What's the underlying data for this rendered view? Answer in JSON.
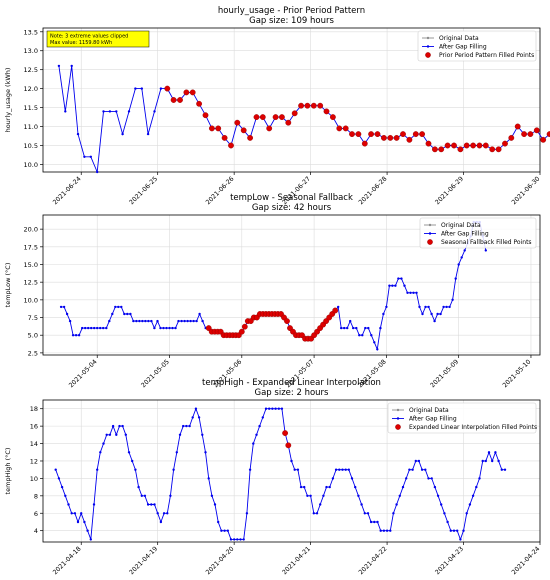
{
  "chart_data": [
    {
      "type": "line",
      "title": "hourly_usage - Prior Period Pattern",
      "subtitle": "Gap size: 109 hours",
      "ylabel": "hourly_usage (kWh)",
      "xlabel": "",
      "xlim": [
        "2021-06-23T12:00",
        "2021-06-30T00:00"
      ],
      "ylim": [
        9.8,
        13.6
      ],
      "yticks": [
        10.0,
        10.5,
        11.0,
        11.5,
        12.0,
        12.5,
        13.0,
        13.5
      ],
      "ytick_labels": [
        "10.0",
        "10.5",
        "11.0",
        "11.5",
        "12.0",
        "12.5",
        "13.0",
        "13.5"
      ],
      "xticks": [
        "2021-06-24",
        "2021-06-25",
        "2021-06-26",
        "2021-06-27",
        "2021-06-28",
        "2021-06-29",
        "2021-06-30"
      ],
      "grid": true,
      "legend_position": "top-right",
      "legend": [
        "Original Data",
        "After Gap Filling",
        "Prior Period Pattern Filled Points"
      ],
      "annotation": [
        "Note: 3 extreme values clipped",
        "Max value: 1159.80 kWh"
      ],
      "annotation_color": "#ffff00",
      "line_color": "#0000ee",
      "original_color": "#8c8c8c",
      "fill_color": "#dd0000",
      "fill_segments": [
        [
          17,
          84
        ],
        [
          113,
          122
        ]
      ],
      "x_start": "2021-06-23T17:00",
      "x_step_hours": 2,
      "values": [
        12.6,
        11.4,
        12.6,
        10.8,
        10.2,
        10.2,
        9.8,
        11.4,
        11.4,
        11.4,
        10.8,
        11.4,
        12.0,
        12.0,
        10.8,
        11.4,
        12.0,
        12.0,
        11.7,
        11.7,
        11.9,
        11.9,
        11.6,
        11.3,
        10.95,
        10.95,
        10.7,
        10.5,
        11.1,
        10.9,
        10.7,
        11.25,
        11.25,
        10.95,
        11.25,
        11.25,
        11.1,
        11.35,
        11.55,
        11.55,
        11.55,
        11.55,
        11.4,
        11.25,
        10.95,
        10.95,
        10.8,
        10.8,
        10.55,
        10.8,
        10.8,
        10.7,
        10.7,
        10.7,
        10.8,
        10.65,
        10.8,
        10.8,
        10.55,
        10.4,
        10.4,
        10.5,
        10.5,
        10.4,
        10.5,
        10.5,
        10.5,
        10.5,
        10.4,
        10.4,
        10.55,
        10.7,
        11.0,
        10.8,
        10.8,
        10.9,
        10.65,
        10.8,
        10.55,
        10.8,
        10.5,
        10.65,
        10.7,
        10.5,
        10.5,
        10.65,
        10.65,
        10.5,
        10.5,
        10.5,
        10.5,
        10.5,
        10.8,
        10.8,
        11.1,
        10.95,
        10.95,
        10.95,
        10.8,
        10.65,
        10.8,
        11.55,
        11.55,
        11.7,
        12.0,
        12.15,
        12.45,
        12.45,
        12.15,
        11.4,
        11.4,
        11.1,
        10.95,
        10.95,
        10.8,
        10.8,
        10.8,
        11.4,
        10.8,
        10.8,
        12.0,
        11.4,
        11.4,
        12.0,
        12.6,
        13.2,
        13.2,
        12.0,
        12.6,
        11.4,
        11.4
      ]
    },
    {
      "type": "line",
      "title": "tempLow - Seasonal Fallback",
      "subtitle": "Gap size: 42 hours",
      "ylabel": "tempLow (°C)",
      "xlabel": "",
      "xlim": [
        "2021-05-03T06:00",
        "2021-05-10T03:00"
      ],
      "ylim": [
        2.2,
        22.0
      ],
      "yticks": [
        2.5,
        5.0,
        7.5,
        10.0,
        12.5,
        15.0,
        17.5,
        20.0
      ],
      "ytick_labels": [
        "2.5",
        "5.0",
        "7.5",
        "10.0",
        "12.5",
        "15.0",
        "17.5",
        "20.0"
      ],
      "xticks": [
        "2021-05-04",
        "2021-05-05",
        "2021-05-06",
        "2021-05-07",
        "2021-05-08",
        "2021-05-09",
        "2021-05-10"
      ],
      "grid": true,
      "legend_position": "top-right",
      "legend": [
        "Original Data",
        "After Gap Filling",
        "Seasonal Fallback Filled Points"
      ],
      "line_color": "#0000ee",
      "original_color": "#8c8c8c",
      "fill_color": "#dd0000",
      "fill_segments": [
        [
          49,
          91
        ]
      ],
      "x_start": "2021-05-03T12:00",
      "x_step_hours": 1,
      "values": [
        9,
        9,
        8,
        7,
        5,
        5,
        5,
        6,
        6,
        6,
        6,
        6,
        6,
        6,
        6,
        6,
        7,
        8,
        9,
        9,
        9,
        8,
        8,
        8,
        7,
        7,
        7,
        7,
        7,
        7,
        7,
        6,
        7,
        6,
        6,
        6,
        6,
        6,
        6,
        7,
        7,
        7,
        7,
        7,
        7,
        7,
        8,
        7,
        6,
        6,
        5.5,
        5.5,
        5.5,
        5.5,
        5,
        5,
        5,
        5,
        5,
        5,
        5.5,
        6.2,
        7,
        7,
        7.5,
        7.5,
        8,
        8,
        8,
        8,
        8,
        8,
        8,
        8,
        7.5,
        7,
        6,
        5.5,
        5,
        5,
        5,
        4.5,
        4.5,
        4.5,
        5,
        5.5,
        6,
        6.5,
        7,
        7.5,
        8,
        8.5,
        9,
        6,
        6,
        6,
        7,
        6,
        6,
        5,
        5,
        6,
        6,
        5,
        4,
        3,
        6,
        8,
        9,
        12,
        12,
        12,
        13,
        13,
        12,
        11,
        11,
        11,
        11,
        9,
        8,
        9,
        9,
        8,
        7,
        8,
        8,
        9,
        9,
        9,
        10,
        13,
        15,
        16,
        17,
        18,
        19,
        21,
        21,
        21,
        19,
        17
      ]
    },
    {
      "type": "line",
      "title": "tempHigh - Expanded Linear Interpolation",
      "subtitle": "Gap size: 2 hours",
      "ylabel": "tempHigh (°C)",
      "xlabel": "",
      "xlim": [
        "2021-04-17T12:00",
        "2021-04-24T00:00"
      ],
      "ylim": [
        2.7,
        19.0
      ],
      "yticks": [
        4,
        6,
        8,
        10,
        12,
        14,
        16,
        18
      ],
      "ytick_labels": [
        "4",
        "6",
        "8",
        "10",
        "12",
        "14",
        "16",
        "18"
      ],
      "xticks": [
        "2021-04-18",
        "2021-04-19",
        "2021-04-20",
        "2021-04-21",
        "2021-04-22",
        "2021-04-23",
        "2021-04-24"
      ],
      "grid": true,
      "legend_position": "top-right",
      "legend": [
        "Original Data",
        "After Gap Filling",
        "Expanded Linear Interpolation Filled Points"
      ],
      "line_color": "#0000ee",
      "original_color": "#8c8c8c",
      "fill_color": "#dd0000",
      "fill_segments": [
        [
          72,
          73
        ]
      ],
      "x_start": "2021-04-17T16:00",
      "x_step_hours": 1,
      "values": [
        11,
        10,
        9,
        8,
        7,
        6,
        6,
        5,
        6,
        5,
        4,
        3,
        7,
        11,
        13,
        14,
        15,
        15,
        16,
        15,
        16,
        16,
        15,
        13,
        12,
        11,
        9,
        8,
        8,
        7,
        7,
        7,
        6,
        5,
        6,
        6,
        8,
        11,
        13,
        15,
        16,
        16,
        16,
        17,
        18,
        17,
        15,
        13,
        10,
        8,
        7,
        5,
        4,
        4,
        4,
        3,
        3,
        3,
        3,
        3,
        6,
        11,
        14,
        15,
        16,
        17,
        18,
        18,
        18,
        18,
        18,
        18,
        15.2,
        13.8,
        12,
        11,
        11,
        9,
        9,
        8,
        8,
        6,
        6,
        7,
        8,
        9,
        9,
        10,
        11,
        11,
        11,
        11,
        11,
        10,
        9,
        8,
        7,
        6,
        6,
        5,
        5,
        5,
        4,
        4,
        4,
        4,
        6,
        7,
        8,
        9,
        10,
        11,
        11,
        12,
        12,
        11,
        11,
        10,
        10,
        9,
        8,
        7,
        6,
        5,
        4,
        4,
        4,
        3,
        4,
        6,
        7,
        8,
        9,
        10,
        12,
        12,
        13,
        12,
        13,
        12,
        11,
        11
      ]
    }
  ]
}
